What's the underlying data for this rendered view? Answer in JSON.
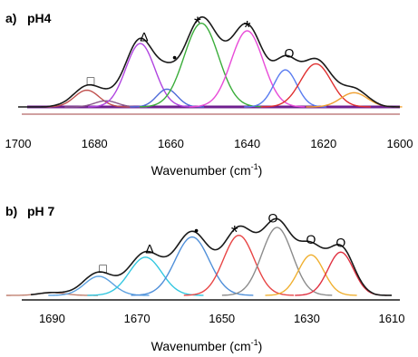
{
  "chart_data": [
    {
      "type": "line",
      "panel": "a)",
      "title": "pH4",
      "xlabel": "Wavenumber (cm",
      "xlabel_sup": "-1",
      "xlabel_close": ")",
      "x_ticks": [
        "1700",
        "1680",
        "1660",
        "1640",
        "1620",
        "1600"
      ],
      "xlim": [
        1700,
        1600
      ],
      "envelope_color": "#1a1a1a",
      "series": [
        {
          "center": 1682,
          "height": 0.33,
          "width": 3.2,
          "color": "#c0504d"
        },
        {
          "center": 1677,
          "height": 0.12,
          "width": 3.0,
          "color": "#8b5a8c"
        },
        {
          "center": 1668,
          "height": 1.25,
          "width": 3.8,
          "color": "#b044e0"
        },
        {
          "center": 1661,
          "height": 0.35,
          "width": 2.7,
          "color": "#4f6bd9"
        },
        {
          "center": 1652,
          "height": 1.65,
          "width": 4.5,
          "color": "#3aad3a"
        },
        {
          "center": 1640,
          "height": 1.5,
          "width": 4.2,
          "color": "#e84bd8"
        },
        {
          "center": 1630,
          "height": 0.73,
          "width": 3.0,
          "color": "#5a7cf0"
        },
        {
          "center": 1622,
          "height": 0.85,
          "width": 4.0,
          "color": "#e03030"
        },
        {
          "center": 1612,
          "height": 0.28,
          "width": 3.5,
          "color": "#f0a030"
        }
      ],
      "baselines": [
        {
          "color": "#6f1f8f"
        },
        {
          "color": "#c08080"
        }
      ],
      "annotations": [
        {
          "text": "□",
          "x": 1681
        },
        {
          "text": "Δ",
          "x": 1667
        },
        {
          "text": "•",
          "x": 1659
        },
        {
          "text": "*",
          "x": 1653
        },
        {
          "text": "*",
          "x": 1640
        },
        {
          "text": "O",
          "x": 1629
        }
      ]
    },
    {
      "type": "line",
      "panel": "b)",
      "title": "pH 7",
      "xlabel": "Wavenumber (cm",
      "xlabel_sup": "-1",
      "xlabel_close": ")",
      "x_ticks": [
        "1690",
        "1670",
        "1650",
        "1630",
        "1610"
      ],
      "xlim": [
        1695,
        1610
      ],
      "envelope_color": "#1a1a1a",
      "series": [
        {
          "center": 1690,
          "height": 0.05,
          "width": 3.0,
          "color": "#c08070"
        },
        {
          "center": 1679,
          "height": 0.34,
          "width": 3.3,
          "color": "#5ba0e0"
        },
        {
          "center": 1668,
          "height": 0.68,
          "width": 3.8,
          "color": "#33c7e0"
        },
        {
          "center": 1657,
          "height": 1.04,
          "width": 4.0,
          "color": "#4f8fd9"
        },
        {
          "center": 1646,
          "height": 1.07,
          "width": 3.6,
          "color": "#e84545"
        },
        {
          "center": 1637,
          "height": 1.21,
          "width": 3.6,
          "color": "#8c8c8c"
        },
        {
          "center": 1629,
          "height": 0.72,
          "width": 3.0,
          "color": "#f0b030"
        },
        {
          "center": 1622,
          "height": 0.77,
          "width": 3.0,
          "color": "#e03040"
        }
      ],
      "annotations": [
        {
          "text": "□",
          "x": 1678
        },
        {
          "text": "Δ",
          "x": 1667
        },
        {
          "text": "•",
          "x": 1656
        },
        {
          "text": "*",
          "x": 1647
        },
        {
          "text": "O",
          "x": 1638
        },
        {
          "text": "O",
          "x": 1629
        },
        {
          "text": "O",
          "x": 1622
        }
      ]
    }
  ]
}
